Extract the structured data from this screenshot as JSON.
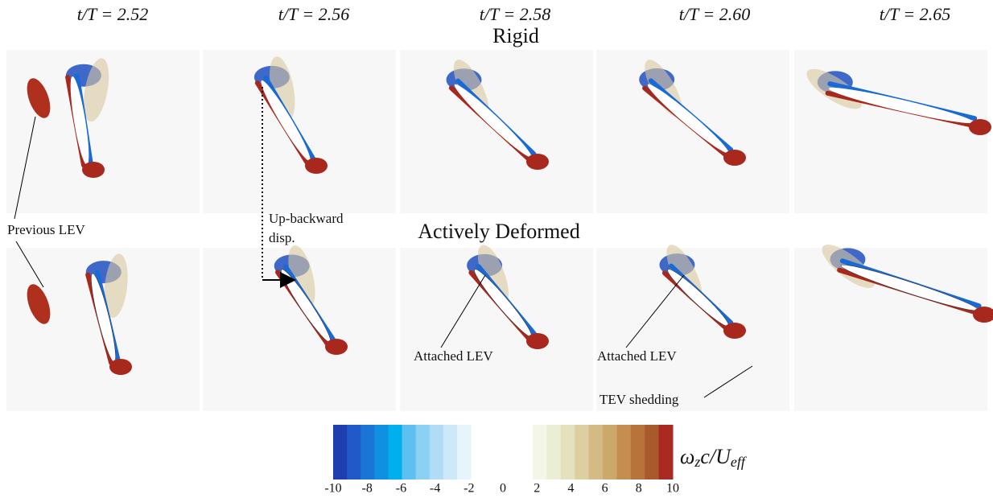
{
  "columns": [
    "t/T = 2.52",
    "t/T = 2.56",
    "t/T = 2.58",
    "t/T = 2.60",
    "t/T = 2.65"
  ],
  "rows": [
    "Rigid",
    "Actively Deformed"
  ],
  "annotations": {
    "previous_lev": "Previous LEV",
    "displacement": [
      "Up-backward",
      "disp."
    ],
    "attached_lev_1": "Attached LEV",
    "attached_lev_2": "Attached LEV",
    "tev_shedding": "TEV shedding"
  },
  "colorbar": {
    "ticks": [
      -10,
      -8,
      -6,
      -4,
      -2,
      0,
      2,
      4,
      6,
      8,
      10
    ],
    "label": [
      "ω",
      "z",
      "c/U",
      "eff"
    ]
  }
}
